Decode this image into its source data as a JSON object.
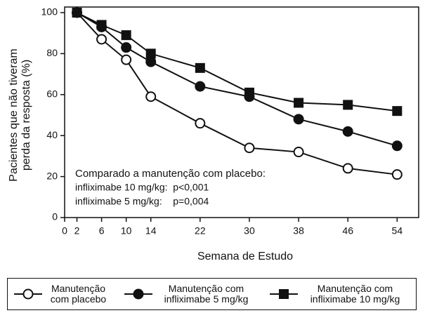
{
  "chart_data": {
    "type": "line",
    "ylabel": [
      "Pacientes que não tiveram",
      "perda da resposta (%)"
    ],
    "xlabel": "Semana de Estudo",
    "annotations": [
      "Comparado a manutenção com placebo:",
      "infliximabe 10 mg/kg:  p<0,001",
      "infliximabe 5 mg/kg:    p=0,004"
    ],
    "x": [
      2,
      6,
      10,
      14,
      22,
      30,
      38,
      46,
      54
    ],
    "series": [
      {
        "name": "Manutenção com placebo",
        "color": "#111111",
        "marker": "circle-open",
        "values": [
          100,
          87,
          77,
          59,
          46,
          34,
          32,
          24,
          21
        ]
      },
      {
        "name": "Manutenção com infliximabe 5 mg/kg",
        "color": "#111111",
        "marker": "circle",
        "values": [
          100,
          93,
          83,
          76,
          64,
          59,
          48,
          42,
          35
        ]
      },
      {
        "name": "Manutenção com infliximabe 10 mg/kg",
        "color": "#111111",
        "marker": "square",
        "values": [
          100,
          94,
          89,
          80,
          73,
          61,
          56,
          55,
          52
        ]
      }
    ],
    "xlim": [
      0,
      57.5
    ],
    "xticks": [
      0,
      2,
      6,
      10,
      14,
      22,
      30,
      38,
      46,
      54
    ],
    "ylim": [
      0,
      100
    ],
    "yticks": [
      0,
      20,
      40,
      60,
      80,
      100
    ]
  }
}
